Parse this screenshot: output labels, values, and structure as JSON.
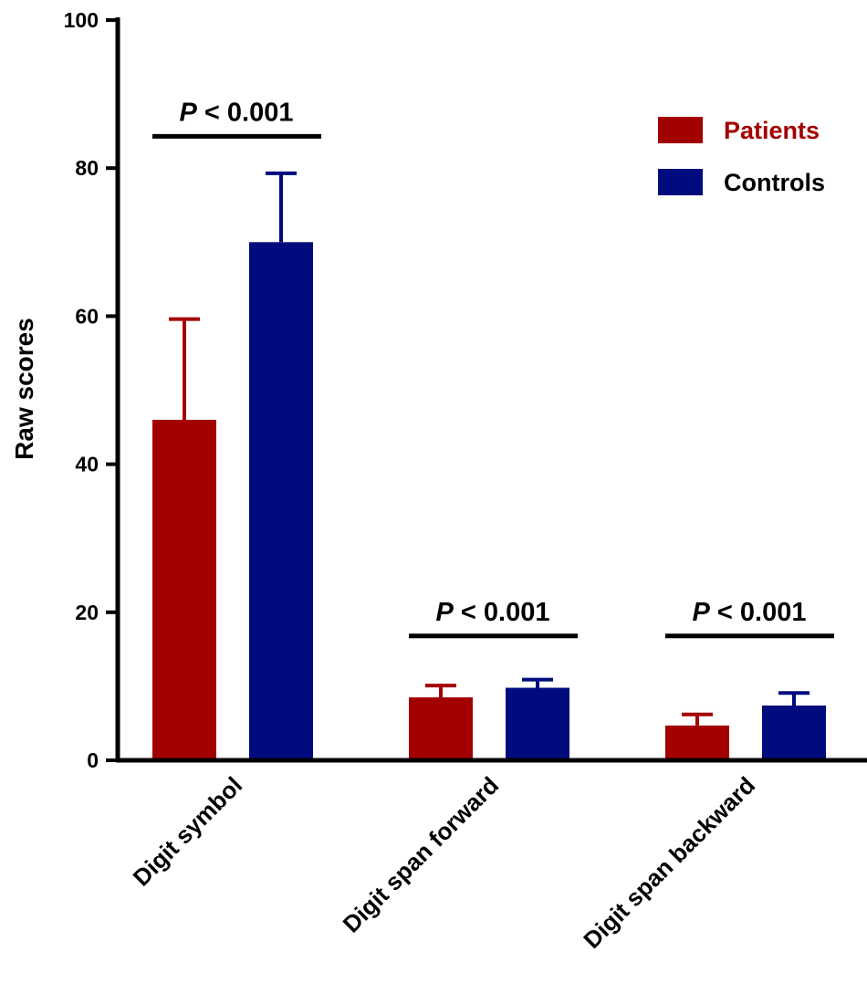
{
  "chart_data": {
    "type": "bar",
    "title": "",
    "xlabel": "",
    "ylabel": "Raw scores",
    "ylim": [
      0,
      100
    ],
    "yticks": [
      0,
      20,
      40,
      60,
      80,
      100
    ],
    "grid": false,
    "legend_position": "top-right",
    "categories": [
      "Digit symbol",
      "Digit span forward",
      "Digit span backward"
    ],
    "series": [
      {
        "name": "Patients",
        "color": "#a30000",
        "values": [
          46,
          8.5,
          4.7
        ],
        "errors": [
          13.6,
          1.6,
          1.5
        ]
      },
      {
        "name": "Controls",
        "color": "#000c7e",
        "values": [
          70,
          9.8,
          7.4
        ],
        "errors": [
          9.3,
          1.1,
          1.7
        ]
      }
    ],
    "annotations": [
      {
        "category": "Digit symbol",
        "text": "P < 0.001",
        "italic_part": "P",
        "rest": " < 0.001",
        "line_value": 84.3
      },
      {
        "category": "Digit span forward",
        "text": "P < 0.001",
        "italic_part": "P",
        "rest": " < 0.001",
        "line_value": 16.8
      },
      {
        "category": "Digit span backward",
        "text": "P < 0.001",
        "italic_part": "P",
        "rest": " < 0.001",
        "line_value": 16.8
      }
    ]
  }
}
